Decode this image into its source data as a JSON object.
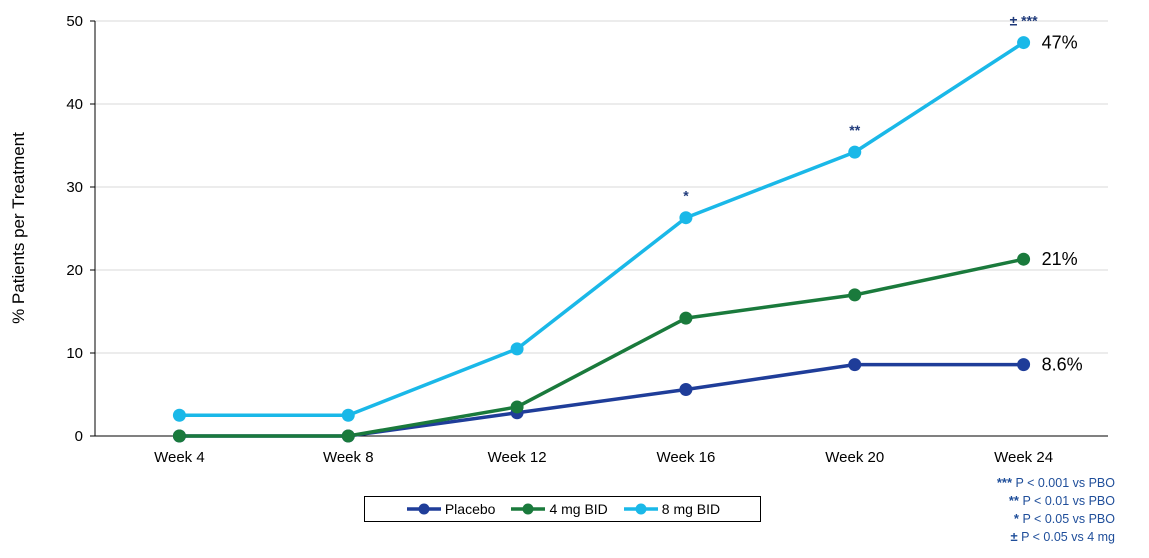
{
  "chart_data": {
    "type": "line",
    "ylabel": "% Patients per Treatment",
    "xlabel": "",
    "categories": [
      "Week 4",
      "Week 8",
      "Week 12",
      "Week 16",
      "Week 20",
      "Week 24"
    ],
    "ylim": [
      0,
      50
    ],
    "yticks": [
      0,
      10,
      20,
      30,
      40,
      50
    ],
    "grid": true,
    "legend_position": "bottom",
    "series": [
      {
        "name": "Placebo",
        "color": "#1f3d99",
        "values": [
          0,
          0,
          2.8,
          5.6,
          8.6,
          8.6
        ],
        "end_label": "8.6%"
      },
      {
        "name": "4 mg BID",
        "color": "#1a7a3c",
        "values": [
          0,
          0,
          3.5,
          14.2,
          17.0,
          21.3
        ],
        "end_label": "21%"
      },
      {
        "name": "8 mg BID",
        "color": "#1ab8e8",
        "values": [
          2.5,
          2.5,
          10.5,
          26.3,
          34.2,
          47.4
        ],
        "end_label": "47%"
      }
    ],
    "annotations": [
      {
        "category": "Week 16",
        "series": "8 mg BID",
        "text": "*"
      },
      {
        "category": "Week 20",
        "series": "8 mg BID",
        "text": "**"
      },
      {
        "category": "Week 24",
        "series": "8 mg BID",
        "text": "± ***"
      }
    ],
    "footnotes": [
      {
        "mark": "***",
        "text": "P < 0.001 vs PBO"
      },
      {
        "mark": "**",
        "text": "P < 0.01 vs PBO"
      },
      {
        "mark": "*",
        "text": "P < 0.05 vs PBO"
      },
      {
        "mark": "±",
        "text": "P < 0.05 vs 4 mg"
      }
    ]
  }
}
